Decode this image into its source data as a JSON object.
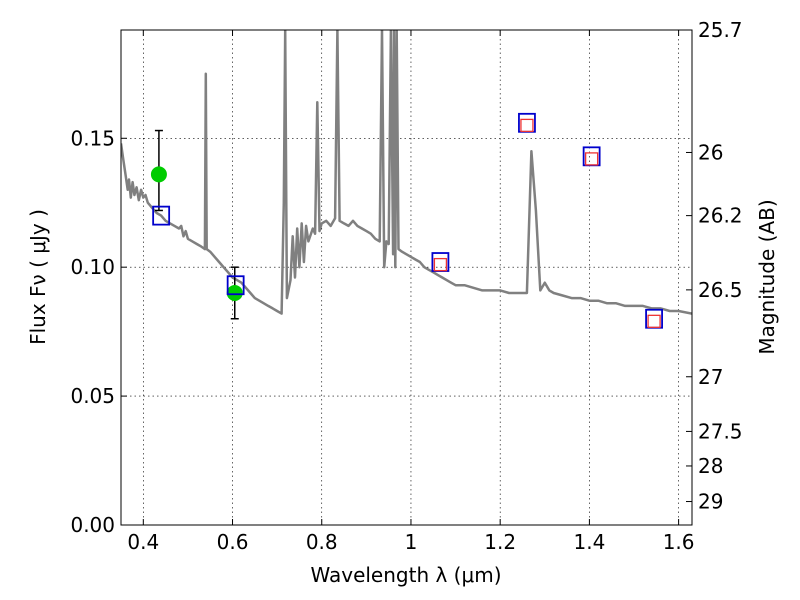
{
  "chart_data": {
    "type": "scatter",
    "title": "",
    "xlabel": "Wavelength  λ (μm)",
    "ylabel": "Flux  Fν  ( μJy )",
    "ylabel_right": "Magnitude (AB)",
    "xlim": [
      0.35,
      1.63
    ],
    "ylim": [
      0.0,
      0.192
    ],
    "grid": true,
    "grid_style": "dotted",
    "x_ticks": [
      {
        "value": 0.4,
        "label": "0.4"
      },
      {
        "value": 0.6,
        "label": "0.6"
      },
      {
        "value": 0.8,
        "label": "0.8"
      },
      {
        "value": 1.0,
        "label": "1"
      },
      {
        "value": 1.2,
        "label": "1.2"
      },
      {
        "value": 1.4,
        "label": "1.4"
      },
      {
        "value": 1.6,
        "label": "1.6"
      }
    ],
    "y_ticks": [
      {
        "value": 0.0,
        "label": "0.00"
      },
      {
        "value": 0.05,
        "label": "0.05"
      },
      {
        "value": 0.1,
        "label": "0.10"
      },
      {
        "value": 0.15,
        "label": "0.15"
      }
    ],
    "right_ticks": [
      {
        "flux": 0.192,
        "label": "25.7"
      },
      {
        "flux": 0.1445,
        "label": "26"
      },
      {
        "flux": 0.12,
        "label": "26.2"
      },
      {
        "flux": 0.0912,
        "label": "26.5"
      },
      {
        "flux": 0.0575,
        "label": "27"
      },
      {
        "flux": 0.0363,
        "label": "27.5"
      },
      {
        "flux": 0.0229,
        "label": "28"
      },
      {
        "flux": 0.0091,
        "label": "29"
      }
    ],
    "model_spectrum": {
      "color": "#808080",
      "points": [
        [
          0.35,
          0.148
        ],
        [
          0.355,
          0.142
        ],
        [
          0.36,
          0.136
        ],
        [
          0.365,
          0.13
        ],
        [
          0.368,
          0.134
        ],
        [
          0.372,
          0.127
        ],
        [
          0.376,
          0.133
        ],
        [
          0.38,
          0.128
        ],
        [
          0.385,
          0.131
        ],
        [
          0.39,
          0.126
        ],
        [
          0.395,
          0.13
        ],
        [
          0.4,
          0.127
        ],
        [
          0.405,
          0.128
        ],
        [
          0.41,
          0.125
        ],
        [
          0.42,
          0.123
        ],
        [
          0.43,
          0.121
        ],
        [
          0.44,
          0.12
        ],
        [
          0.45,
          0.118
        ],
        [
          0.46,
          0.117
        ],
        [
          0.47,
          0.116
        ],
        [
          0.48,
          0.115
        ],
        [
          0.485,
          0.116
        ],
        [
          0.49,
          0.112
        ],
        [
          0.495,
          0.114
        ],
        [
          0.5,
          0.111
        ],
        [
          0.51,
          0.11
        ],
        [
          0.52,
          0.109
        ],
        [
          0.53,
          0.108
        ],
        [
          0.538,
          0.107
        ],
        [
          0.54,
          0.175
        ],
        [
          0.542,
          0.107
        ],
        [
          0.55,
          0.106
        ],
        [
          0.56,
          0.104
        ],
        [
          0.57,
          0.102
        ],
        [
          0.58,
          0.1
        ],
        [
          0.59,
          0.098
        ],
        [
          0.6,
          0.096
        ],
        [
          0.61,
          0.095
        ],
        [
          0.62,
          0.094
        ],
        [
          0.63,
          0.092
        ],
        [
          0.64,
          0.09
        ],
        [
          0.65,
          0.088
        ],
        [
          0.66,
          0.087
        ],
        [
          0.67,
          0.086
        ],
        [
          0.68,
          0.085
        ],
        [
          0.69,
          0.084
        ],
        [
          0.7,
          0.083
        ],
        [
          0.71,
          0.082
        ],
        [
          0.715,
          0.125
        ],
        [
          0.718,
          0.192
        ],
        [
          0.722,
          0.088
        ],
        [
          0.73,
          0.095
        ],
        [
          0.735,
          0.112
        ],
        [
          0.74,
          0.096
        ],
        [
          0.745,
          0.115
        ],
        [
          0.75,
          0.1
        ],
        [
          0.755,
          0.117
        ],
        [
          0.76,
          0.102
        ],
        [
          0.765,
          0.116
        ],
        [
          0.77,
          0.11
        ],
        [
          0.78,
          0.115
        ],
        [
          0.785,
          0.113
        ],
        [
          0.79,
          0.164
        ],
        [
          0.795,
          0.114
        ],
        [
          0.8,
          0.117
        ],
        [
          0.81,
          0.118
        ],
        [
          0.82,
          0.116
        ],
        [
          0.83,
          0.119
        ],
        [
          0.835,
          0.192
        ],
        [
          0.84,
          0.118
        ],
        [
          0.85,
          0.117
        ],
        [
          0.86,
          0.116
        ],
        [
          0.87,
          0.118
        ],
        [
          0.88,
          0.116
        ],
        [
          0.89,
          0.115
        ],
        [
          0.9,
          0.114
        ],
        [
          0.91,
          0.113
        ],
        [
          0.92,
          0.111
        ],
        [
          0.93,
          0.11
        ],
        [
          0.935,
          0.192
        ],
        [
          0.94,
          0.1
        ],
        [
          0.945,
          0.11
        ],
        [
          0.95,
          0.109
        ],
        [
          0.955,
          0.192
        ],
        [
          0.96,
          0.105
        ],
        [
          0.962,
          0.192
        ],
        [
          0.965,
          0.1
        ],
        [
          0.968,
          0.192
        ],
        [
          0.972,
          0.107
        ],
        [
          0.98,
          0.106
        ],
        [
          0.99,
          0.105
        ],
        [
          1.0,
          0.104
        ],
        [
          1.01,
          0.103
        ],
        [
          1.02,
          0.102
        ],
        [
          1.03,
          0.1
        ],
        [
          1.04,
          0.099
        ],
        [
          1.05,
          0.098
        ],
        [
          1.06,
          0.097
        ],
        [
          1.07,
          0.096
        ],
        [
          1.08,
          0.095
        ],
        [
          1.09,
          0.094
        ],
        [
          1.1,
          0.093
        ],
        [
          1.12,
          0.093
        ],
        [
          1.14,
          0.092
        ],
        [
          1.16,
          0.091
        ],
        [
          1.18,
          0.091
        ],
        [
          1.2,
          0.091
        ],
        [
          1.22,
          0.09
        ],
        [
          1.24,
          0.09
        ],
        [
          1.26,
          0.09
        ],
        [
          1.27,
          0.145
        ],
        [
          1.28,
          0.122
        ],
        [
          1.29,
          0.091
        ],
        [
          1.3,
          0.094
        ],
        [
          1.31,
          0.091
        ],
        [
          1.32,
          0.09
        ],
        [
          1.34,
          0.089
        ],
        [
          1.36,
          0.088
        ],
        [
          1.38,
          0.088
        ],
        [
          1.4,
          0.087
        ],
        [
          1.42,
          0.087
        ],
        [
          1.44,
          0.086
        ],
        [
          1.46,
          0.086
        ],
        [
          1.48,
          0.085
        ],
        [
          1.5,
          0.085
        ],
        [
          1.52,
          0.085
        ],
        [
          1.54,
          0.084
        ],
        [
          1.56,
          0.084
        ],
        [
          1.58,
          0.083
        ],
        [
          1.6,
          0.083
        ],
        [
          1.63,
          0.082
        ]
      ]
    },
    "series": [
      {
        "marker": "circle",
        "color": "#00cc00",
        "points": [
          {
            "x": 0.435,
            "y": 0.136,
            "yerr_low": 0.122,
            "yerr_high": 0.153
          },
          {
            "x": 0.605,
            "y": 0.09,
            "yerr_low": 0.08,
            "yerr_high": 0.1
          }
        ]
      },
      {
        "marker": "square-open",
        "color": "#0000cc",
        "points": [
          {
            "x": 0.44,
            "y": 0.12
          },
          {
            "x": 0.607,
            "y": 0.093
          },
          {
            "x": 1.066,
            "y": 0.102
          },
          {
            "x": 1.26,
            "y": 0.156
          },
          {
            "x": 1.405,
            "y": 0.143
          },
          {
            "x": 1.545,
            "y": 0.08
          }
        ]
      },
      {
        "marker": "square-small-open",
        "color": "#ee3333",
        "points": [
          {
            "x": 1.066,
            "y": 0.101
          },
          {
            "x": 1.26,
            "y": 0.155
          },
          {
            "x": 1.405,
            "y": 0.142
          },
          {
            "x": 1.545,
            "y": 0.079
          }
        ]
      }
    ]
  }
}
